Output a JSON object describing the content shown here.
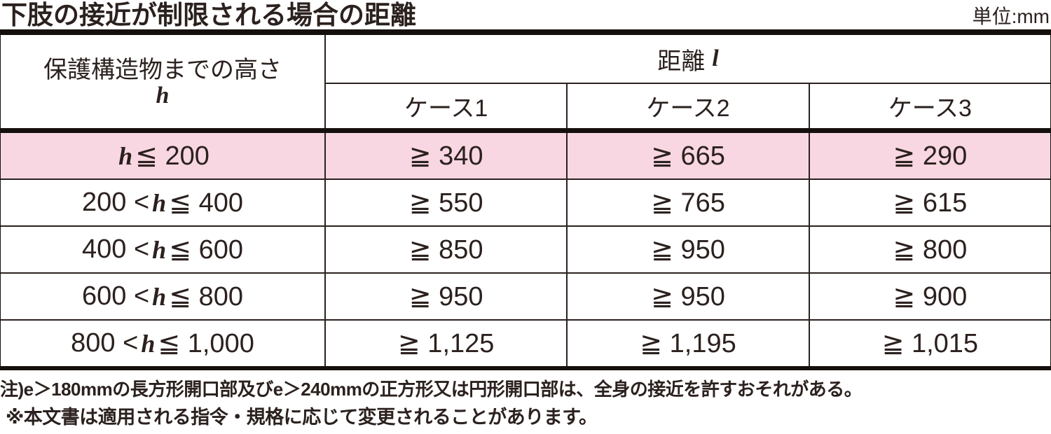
{
  "header": {
    "title": "下肢の接近が制限される場合の距離",
    "unit": "単位:mm"
  },
  "table": {
    "col1_header": {
      "label": "保護構造物までの高さ",
      "symbol": "h"
    },
    "distance_header": {
      "label": "距離",
      "symbol": "l"
    },
    "case_headers": [
      "ケース1",
      "ケース2",
      "ケース3"
    ],
    "rows": [
      {
        "pre": "",
        "var": "h",
        "post": " ≦ 200",
        "case1": "≧ 340",
        "case2": "≧ 665",
        "case3": "≧ 290",
        "highlighted": true
      },
      {
        "pre": "200 < ",
        "var": "h",
        "post": " ≦ 400",
        "case1": "≧ 550",
        "case2": "≧ 765",
        "case3": "≧ 615",
        "highlighted": false
      },
      {
        "pre": "400 < ",
        "var": "h",
        "post": " ≦ 600",
        "case1": "≧ 850",
        "case2": "≧ 950",
        "case3": "≧ 800",
        "highlighted": false
      },
      {
        "pre": "600 < ",
        "var": "h",
        "post": " ≦ 800",
        "case1": "≧ 950",
        "case2": "≧ 950",
        "case3": "≧ 900",
        "highlighted": false
      },
      {
        "pre": "800 < ",
        "var": "h",
        "post": " ≦ 1,000",
        "case1": "≧ 1,125",
        "case2": "≧ 1,195",
        "case3": "≧ 1,015",
        "highlighted": false
      }
    ]
  },
  "notes": {
    "note1": "注)e＞180mmの長方形開口部及びe＞240mmの正方形又は円形開口部は、全身の接近を許すおそれがある。",
    "note2": "※本文書は適用される指令・規格に応じて変更されることがあります。"
  },
  "colors": {
    "highlight_row": "#f8d7e3",
    "text": "#2b211e",
    "border": "#15100d"
  }
}
